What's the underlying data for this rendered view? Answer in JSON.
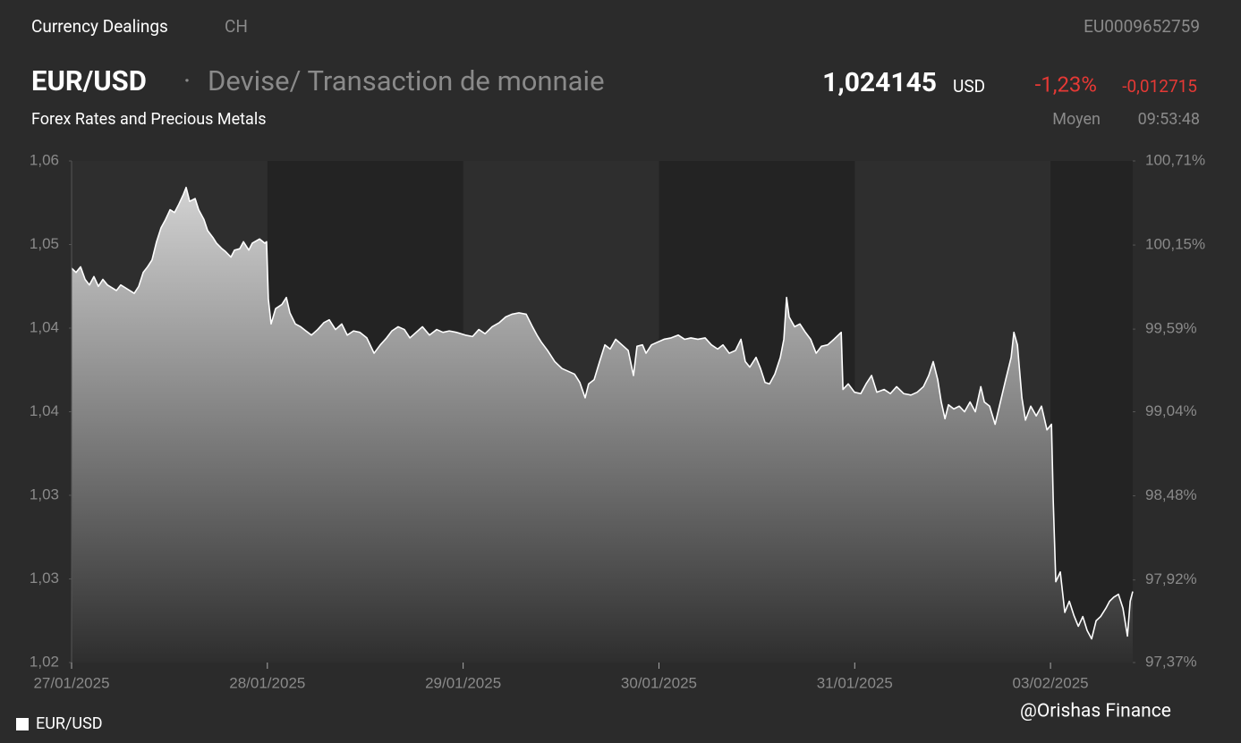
{
  "header": {
    "section": "Currency Dealings",
    "country": "CH",
    "isin": "EU0009652759",
    "pair": "EUR/USD",
    "separator": "·",
    "description": "Devise/ Transaction de monnaie",
    "subtitle": "Forex Rates and Precious Metals",
    "price": "1,024145",
    "currency": "USD",
    "change_pct": "-1,23%",
    "change_abs": "-0,012715",
    "price_type": "Moyen",
    "time": "09:53:48"
  },
  "watermark": "@Orishas Finance",
  "chart_data": {
    "type": "area",
    "x": [
      0,
      0.023,
      0.046,
      0.069,
      0.091,
      0.114,
      0.137,
      0.16,
      0.183,
      0.206,
      0.229,
      0.251,
      0.274,
      0.297,
      0.32,
      0.343,
      0.366,
      0.388,
      0.411,
      0.434,
      0.457,
      0.48,
      0.503,
      0.526,
      0.548,
      0.571,
      0.585,
      0.603,
      0.631,
      0.649,
      0.676,
      0.695,
      0.722,
      0.74,
      0.768,
      0.786,
      0.814,
      0.832,
      0.859,
      0.878,
      0.905,
      0.923,
      0.96,
      0.987,
      0.996,
      1.005,
      1.019,
      1.042,
      1.074,
      1.097,
      1.115,
      1.143,
      1.17,
      1.197,
      1.225,
      1.257,
      1.289,
      1.316,
      1.348,
      1.38,
      1.408,
      1.44,
      1.472,
      1.508,
      1.545,
      1.577,
      1.609,
      1.636,
      1.668,
      1.7,
      1.728,
      1.76,
      1.792,
      1.828,
      1.865,
      1.897,
      1.929,
      1.965,
      2.011,
      2.048,
      2.08,
      2.112,
      2.148,
      2.185,
      2.217,
      2.249,
      2.285,
      2.322,
      2.354,
      2.377,
      2.399,
      2.431,
      2.468,
      2.505,
      2.537,
      2.569,
      2.596,
      2.623,
      2.641,
      2.669,
      2.697,
      2.724,
      2.751,
      2.779,
      2.811,
      2.843,
      2.87,
      2.888,
      2.916,
      2.934,
      2.962,
      2.994,
      3.026,
      3.062,
      3.099,
      3.131,
      3.163,
      3.199,
      3.236,
      3.268,
      3.3,
      3.327,
      3.359,
      3.391,
      3.419,
      3.441,
      3.464,
      3.496,
      3.519,
      3.542,
      3.565,
      3.592,
      3.62,
      3.638,
      3.652,
      3.665,
      3.693,
      3.72,
      3.748,
      3.775,
      3.803,
      3.83,
      3.862,
      3.894,
      3.931,
      3.94,
      3.967,
      3.999,
      4.031,
      4.058,
      4.086,
      4.113,
      4.15,
      4.182,
      4.214,
      4.25,
      4.287,
      4.319,
      4.351,
      4.378,
      4.401,
      4.424,
      4.442,
      4.461,
      4.479,
      4.506,
      4.534,
      4.561,
      4.589,
      4.616,
      4.644,
      4.662,
      4.689,
      4.717,
      4.744,
      4.771,
      4.799,
      4.813,
      4.831,
      4.854,
      4.872,
      4.899,
      4.927,
      4.954,
      4.982,
      5.005,
      5.014,
      5.027,
      5.05,
      5.073,
      5.096,
      5.119,
      5.142,
      5.165,
      5.187,
      5.21,
      5.233,
      5.256,
      5.283,
      5.302,
      5.324,
      5.347,
      5.37,
      5.393,
      5.407,
      5.42
    ],
    "series": [
      {
        "name": "EUR/USD",
        "color": "#ffffff",
        "values": [
          1.0483,
          1.048,
          1.0484,
          1.0475,
          1.0471,
          1.0477,
          1.047,
          1.0475,
          1.0471,
          1.0469,
          1.0467,
          1.0471,
          1.0469,
          1.0467,
          1.0465,
          1.047,
          1.048,
          1.0484,
          1.0489,
          1.0502,
          1.0512,
          1.0518,
          1.0525,
          1.0523,
          1.0529,
          1.0536,
          1.0541,
          1.0531,
          1.0533,
          1.0525,
          1.0518,
          1.051,
          1.0505,
          1.0501,
          1.0497,
          1.0495,
          1.0491,
          1.0496,
          1.0497,
          1.0502,
          1.0496,
          1.0501,
          1.0504,
          1.0501,
          1.0502,
          1.0461,
          1.0443,
          1.0454,
          1.0457,
          1.0462,
          1.0451,
          1.0443,
          1.0441,
          1.0438,
          1.0435,
          1.0439,
          1.0444,
          1.0446,
          1.0439,
          1.0443,
          1.0435,
          1.0438,
          1.0437,
          1.0433,
          1.0422,
          1.0428,
          1.0433,
          1.0438,
          1.0441,
          1.0439,
          1.0433,
          1.0437,
          1.0441,
          1.0435,
          1.0439,
          1.0437,
          1.0438,
          1.0437,
          1.0435,
          1.0434,
          1.0439,
          1.0436,
          1.0441,
          1.0444,
          1.0448,
          1.045,
          1.0451,
          1.045,
          1.0441,
          1.0435,
          1.043,
          1.0424,
          1.0416,
          1.0411,
          1.0409,
          1.0407,
          1.0401,
          1.039,
          1.04,
          1.0403,
          1.0416,
          1.0428,
          1.0425,
          1.0432,
          1.0428,
          1.0424,
          1.0406,
          1.0427,
          1.0428,
          1.0422,
          1.0428,
          1.043,
          1.0432,
          1.0433,
          1.0435,
          1.0432,
          1.0433,
          1.0432,
          1.0433,
          1.0428,
          1.0425,
          1.0428,
          1.0422,
          1.0424,
          1.0432,
          1.0416,
          1.0412,
          1.0419,
          1.0411,
          1.0401,
          1.04,
          1.0407,
          1.0419,
          1.0432,
          1.0462,
          1.0448,
          1.0441,
          1.0443,
          1.0437,
          1.0432,
          1.0422,
          1.0427,
          1.0428,
          1.0432,
          1.0437,
          1.0396,
          1.04,
          1.0394,
          1.0393,
          1.04,
          1.0406,
          1.0394,
          1.0396,
          1.0393,
          1.0398,
          1.0393,
          1.0392,
          1.0394,
          1.0398,
          1.0406,
          1.0416,
          1.0403,
          1.0387,
          1.0375,
          1.0385,
          1.0382,
          1.0384,
          1.038,
          1.0387,
          1.038,
          1.0398,
          1.0387,
          1.0384,
          1.0371,
          1.0387,
          1.0403,
          1.0419,
          1.0437,
          1.0428,
          1.039,
          1.0374,
          1.0384,
          1.0377,
          1.0384,
          1.0367,
          1.0371,
          1.0316,
          1.0258,
          1.0265,
          1.0236,
          1.0244,
          1.0234,
          1.0226,
          1.0233,
          1.0223,
          1.0217,
          1.023,
          1.0233,
          1.0239,
          1.0244,
          1.0247,
          1.0249,
          1.0239,
          1.0219,
          1.0244,
          1.0251
        ]
      }
    ],
    "xlim": [
      0,
      5.42
    ],
    "xticks": [
      {
        "value": 0,
        "label": "27/01/2025"
      },
      {
        "value": 1,
        "label": "28/01/2025"
      },
      {
        "value": 2,
        "label": "29/01/2025"
      },
      {
        "value": 3,
        "label": "30/01/2025"
      },
      {
        "value": 4,
        "label": "31/01/2025"
      },
      {
        "value": 5,
        "label": "03/02/2025"
      }
    ],
    "ylim": [
      1.02,
      1.056
    ],
    "yticks": [
      {
        "value": 1.02,
        "label": "1,02"
      },
      {
        "value": 1.026,
        "label": "1,03"
      },
      {
        "value": 1.032,
        "label": "1,03"
      },
      {
        "value": 1.038,
        "label": "1,04"
      },
      {
        "value": 1.044,
        "label": "1,04"
      },
      {
        "value": 1.05,
        "label": "1,05"
      },
      {
        "value": 1.056,
        "label": "1,06"
      }
    ],
    "y2lim": [
      97.37,
      100.71
    ],
    "y2ticks": [
      {
        "value": 97.37,
        "label": "97,37%"
      },
      {
        "value": 97.92,
        "label": "97,92%"
      },
      {
        "value": 98.48,
        "label": "98,48%"
      },
      {
        "value": 99.04,
        "label": "99,04%"
      },
      {
        "value": 99.59,
        "label": "99,59%"
      },
      {
        "value": 100.15,
        "label": "100,15%"
      },
      {
        "value": 100.71,
        "label": "100,71%"
      }
    ],
    "legend": "bottom-left"
  }
}
